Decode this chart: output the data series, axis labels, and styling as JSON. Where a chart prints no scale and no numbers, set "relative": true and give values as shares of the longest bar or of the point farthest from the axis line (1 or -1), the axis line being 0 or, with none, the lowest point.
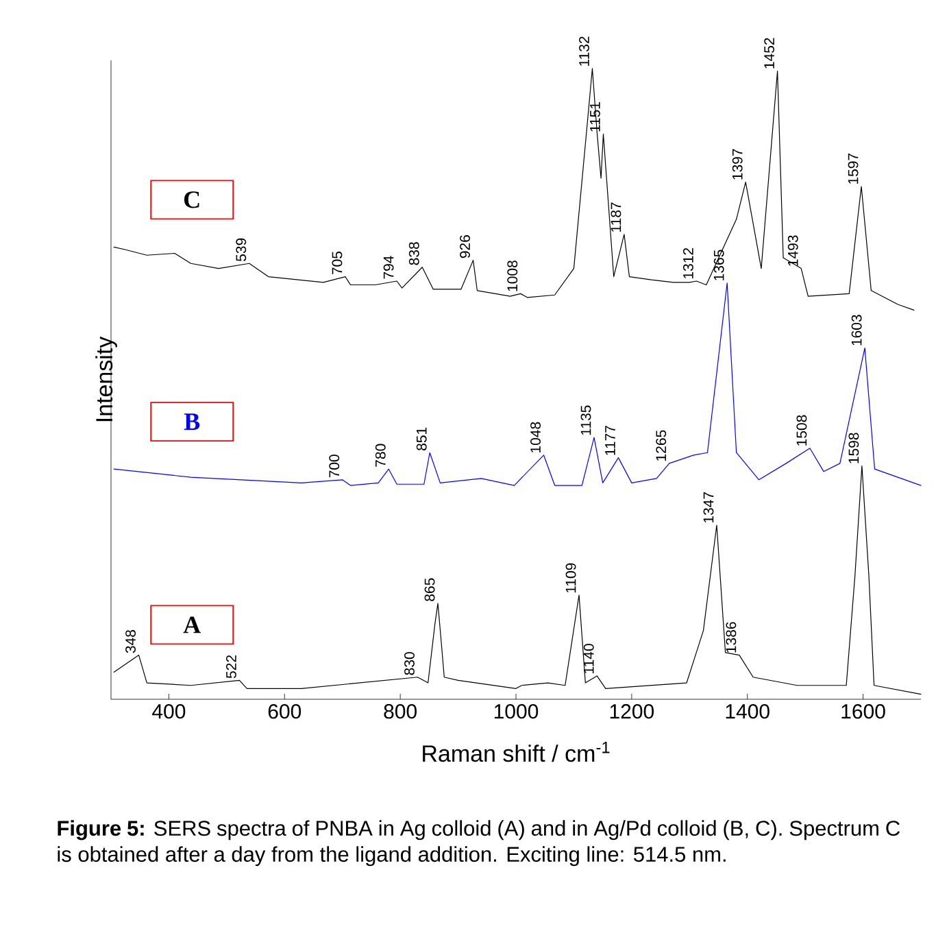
{
  "chart_data": {
    "type": "line",
    "relative": true,
    "xlabel": "Raman shift / cm$^{-1}$",
    "ylabel": "Intensity",
    "xlim": [
      300,
      1700
    ],
    "xticks": [
      400,
      600,
      800,
      1000,
      1200,
      1400,
      1600
    ],
    "tick_labels": "x",
    "series": [
      {
        "name": "A",
        "color": "#000000",
        "x": [
          305,
          348,
          362,
          438,
          522,
          535,
          629,
          830,
          848,
          860,
          865,
          870,
          876,
          900,
          1000,
          1010,
          1055,
          1085,
          1109,
          1120,
          1140,
          1155,
          1295,
          1324,
          1347,
          1362,
          1386,
          1410,
          1486,
          1571,
          1586,
          1598,
          1610,
          1619,
          1700
        ],
        "values": [
          0.043,
          0.07,
          0.026,
          0.022,
          0.03,
          0.017,
          0.017,
          0.035,
          0.026,
          0.12,
          0.152,
          0.1,
          0.035,
          0.03,
          0.017,
          0.022,
          0.026,
          0.022,
          0.165,
          0.026,
          0.037,
          0.017,
          0.026,
          0.109,
          0.276,
          0.074,
          0.07,
          0.035,
          0.022,
          0.022,
          0.196,
          0.37,
          0.196,
          0.022,
          0.008
        ]
      },
      {
        "name": "B",
        "color": "#0000ff",
        "x": [
          305,
          438,
          629,
          700,
          714,
          762,
          780,
          794,
          841,
          851,
          869,
          940,
          997,
          1048,
          1067,
          1114,
          1135,
          1150,
          1177,
          1200,
          1243,
          1265,
          1307,
          1331,
          1365,
          1381,
          1420,
          1467,
          1508,
          1532,
          1560,
          1603,
          1620,
          1700
        ],
        "values": [
          0.365,
          0.352,
          0.343,
          0.348,
          0.339,
          0.343,
          0.365,
          0.341,
          0.341,
          0.391,
          0.343,
          0.35,
          0.339,
          0.387,
          0.339,
          0.339,
          0.415,
          0.343,
          0.383,
          0.343,
          0.35,
          0.374,
          0.387,
          0.391,
          0.66,
          0.391,
          0.348,
          0.374,
          0.398,
          0.361,
          0.374,
          0.557,
          0.365,
          0.339
        ]
      },
      {
        "name": "C",
        "color": "#000000",
        "x": [
          305,
          324,
          362,
          410,
          438,
          486,
          539,
          572,
          667,
          705,
          714,
          757,
          794,
          803,
          838,
          857,
          905,
          926,
          933,
          990,
          1008,
          1020,
          1067,
          1100,
          1122,
          1132,
          1140,
          1147,
          1151,
          1169,
          1187,
          1196,
          1234,
          1272,
          1300,
          1312,
          1329,
          1381,
          1397,
          1424,
          1452,
          1462,
          1493,
          1505,
          1576,
          1597,
          1614,
          1660,
          1688
        ],
        "values": [
          0.717,
          0.713,
          0.704,
          0.707,
          0.691,
          0.683,
          0.691,
          0.67,
          0.661,
          0.67,
          0.657,
          0.657,
          0.663,
          0.652,
          0.685,
          0.65,
          0.65,
          0.696,
          0.648,
          0.639,
          0.643,
          0.637,
          0.641,
          0.683,
          0.9,
          1.0,
          0.9,
          0.826,
          0.896,
          0.67,
          0.737,
          0.67,
          0.665,
          0.661,
          0.661,
          0.663,
          0.657,
          0.761,
          0.82,
          0.683,
          0.996,
          0.7,
          0.683,
          0.639,
          0.643,
          0.813,
          0.648,
          0.626,
          0.617
        ]
      }
    ],
    "annotations": [
      {
        "text": "348",
        "x": 348,
        "y": 0.07
      },
      {
        "text": "522",
        "x": 522,
        "y": 0.03
      },
      {
        "text": "830",
        "x": 830,
        "y": 0.035
      },
      {
        "text": "865",
        "x": 865,
        "y": 0.152
      },
      {
        "text": "1109",
        "x": 1109,
        "y": 0.165
      },
      {
        "text": "1140",
        "x": 1140,
        "y": 0.037
      },
      {
        "text": "1347",
        "x": 1347,
        "y": 0.276
      },
      {
        "text": "1386",
        "x": 1386,
        "y": 0.07
      },
      {
        "text": "1598",
        "x": 1598,
        "y": 0.37
      },
      {
        "text": "700",
        "x": 700,
        "y": 0.348
      },
      {
        "text": "780",
        "x": 780,
        "y": 0.365
      },
      {
        "text": "851",
        "x": 851,
        "y": 0.391
      },
      {
        "text": "1048",
        "x": 1048,
        "y": 0.387
      },
      {
        "text": "1135",
        "x": 1135,
        "y": 0.415
      },
      {
        "text": "1177",
        "x": 1177,
        "y": 0.383
      },
      {
        "text": "1265",
        "x": 1265,
        "y": 0.374
      },
      {
        "text": "1365",
        "x": 1365,
        "y": 0.66
      },
      {
        "text": "1508",
        "x": 1508,
        "y": 0.398
      },
      {
        "text": "1603",
        "x": 1603,
        "y": 0.557
      },
      {
        "text": "539",
        "x": 539,
        "y": 0.691
      },
      {
        "text": "705",
        "x": 705,
        "y": 0.67
      },
      {
        "text": "794",
        "x": 794,
        "y": 0.663
      },
      {
        "text": "838",
        "x": 838,
        "y": 0.685
      },
      {
        "text": "926",
        "x": 926,
        "y": 0.696
      },
      {
        "text": "1008",
        "x": 1008,
        "y": 0.643
      },
      {
        "text": "1132",
        "x": 1132,
        "y": 1.0
      },
      {
        "text": "1151",
        "x": 1151,
        "y": 0.896
      },
      {
        "text": "1187",
        "x": 1187,
        "y": 0.737
      },
      {
        "text": "1312",
        "x": 1312,
        "y": 0.663
      },
      {
        "text": "1397",
        "x": 1397,
        "y": 0.82
      },
      {
        "text": "1452",
        "x": 1452,
        "y": 0.996
      },
      {
        "text": "1493",
        "x": 1493,
        "y": 0.683
      },
      {
        "text": "1597",
        "x": 1597,
        "y": 0.813
      },
      "**Figure 5:** SERS spectra of PNBA in Ag colloid (A) and in Ag/Pd colloid (B, C). Spectrum C is obtained after a day from the ligand addition. Exciting line: 514.5 nm."
    ]
  }
}
